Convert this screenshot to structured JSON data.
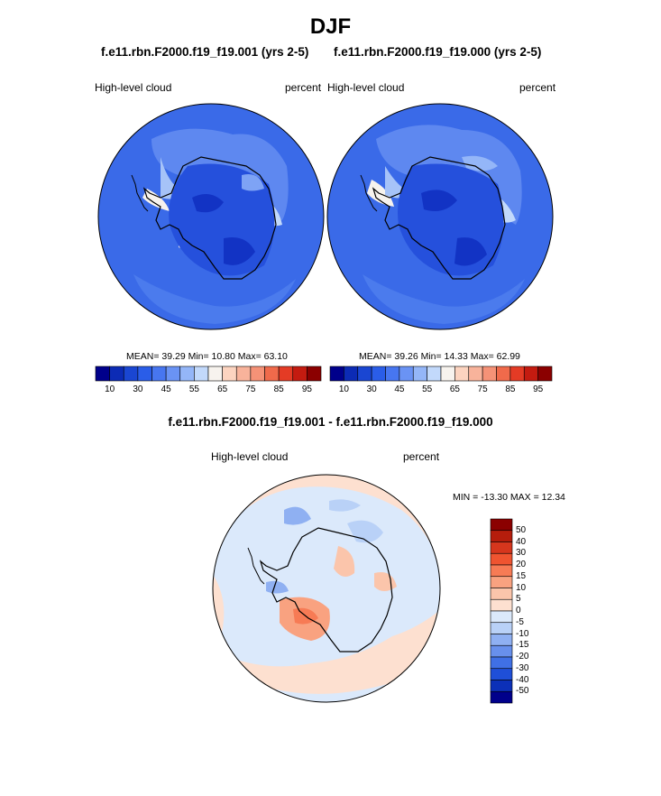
{
  "title": "DJF",
  "panels": [
    {
      "title": "f.e11.rbn.F2000.f19_f19.001 (yrs 2-5)",
      "left_label": "High-level cloud",
      "right_label": "percent",
      "stats": "MEAN=  39.29  Min=  10.80  Max=  63.10"
    },
    {
      "title": "f.e11.rbn.F2000.f19_f19.000 (yrs 2-5)",
      "left_label": "High-level cloud",
      "right_label": "percent",
      "stats": "MEAN=  39.26  Min=  14.33  Max=  62.99"
    }
  ],
  "colorbar": {
    "colors": [
      "#00008b",
      "#0c2bb5",
      "#1a46d2",
      "#2a5de8",
      "#4776f0",
      "#6a93f4",
      "#94b6f8",
      "#c2d9fb",
      "#f7f3ee",
      "#fcd4c0",
      "#f8b39b",
      "#f59277",
      "#f06a4b",
      "#e43b25",
      "#c41b10",
      "#8b0000"
    ],
    "tick_labels": [
      "10",
      "30",
      "45",
      "55",
      "65",
      "75",
      "85",
      "95"
    ]
  },
  "difference": {
    "title": "f.e11.rbn.F2000.f19_f19.001 - f.e11.rbn.F2000.f19_f19.000",
    "left_label": "High-level cloud",
    "right_label": "percent",
    "minmax": "MIN = -13.30 MAX =  12.34",
    "colors": [
      "#8b0000",
      "#b51d0c",
      "#d6361d",
      "#ef5430",
      "#f77b55",
      "#f9a280",
      "#fbc5ab",
      "#fde0d0",
      "#dbe9fb",
      "#b9d1f7",
      "#8fb0f2",
      "#6890ec",
      "#4070e5",
      "#1f4fd8",
      "#0c30b8",
      "#00008b"
    ],
    "tick_labels": [
      "50",
      "40",
      "30",
      "20",
      "15",
      "10",
      "5",
      "0",
      "-5",
      "-10",
      "-15",
      "-20",
      "-30",
      "-40",
      "-50"
    ]
  }
}
